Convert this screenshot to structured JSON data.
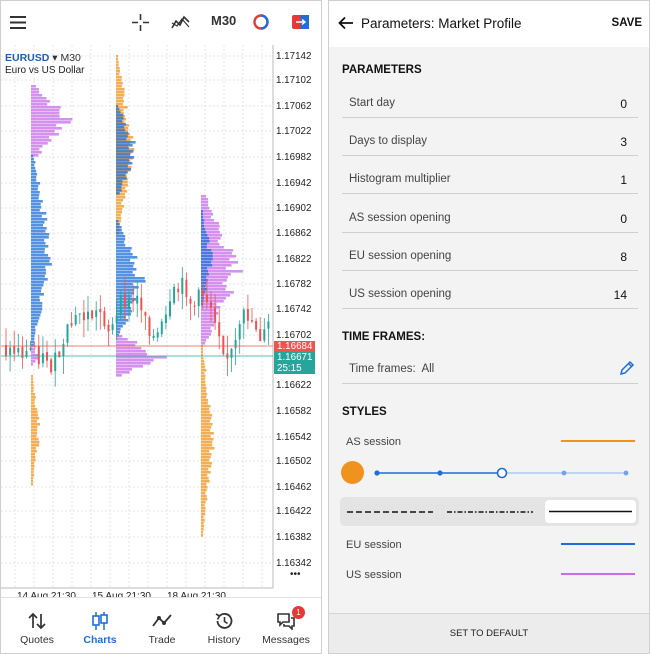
{
  "chart": {
    "symbol": "EURUSD",
    "timeframe": "M30",
    "description": "Euro vs US Dollar",
    "toolbar": {
      "timeframe_label": "M30"
    },
    "price_labels": [
      "1.17142",
      "1.17102",
      "1.17062",
      "1.17022",
      "1.16982",
      "1.16942",
      "1.16902",
      "1.16862",
      "1.16822",
      "1.16782",
      "1.16742",
      "1.16702",
      "1.16622",
      "1.16582",
      "1.16542",
      "1.16502",
      "1.16462",
      "1.16422",
      "1.16382",
      "1.16342"
    ],
    "bid_tag": "1.16684",
    "ask_tag": "1.16671",
    "timer_tag": "25:15",
    "time_labels": [
      "14 Aug 21:30",
      "15 Aug 21:30",
      "18 Aug 21:30"
    ],
    "more_label": "•••"
  },
  "colors": {
    "bull": "#26a69a",
    "bear": "#ef5350",
    "as_session": "#f0931e",
    "eu_session": "#1e6ed8",
    "us_session": "#c66ee8",
    "accent": "#1e6ed8"
  },
  "tabs": [
    {
      "label": "Quotes",
      "icon": "arrows-updown-icon"
    },
    {
      "label": "Charts",
      "icon": "candles-icon",
      "active": true
    },
    {
      "label": "Trade",
      "icon": "trend-icon"
    },
    {
      "label": "History",
      "icon": "history-icon"
    },
    {
      "label": "Messages",
      "icon": "chat-icon",
      "badge": "1"
    }
  ],
  "params_page": {
    "title": "Parameters: Market Profile",
    "save_label": "SAVE",
    "parameters_header": "PARAMETERS",
    "parameters": [
      {
        "name": "Start day",
        "value": "0"
      },
      {
        "name": "Days to display",
        "value": "3"
      },
      {
        "name": "Histogram multiplier",
        "value": "1"
      },
      {
        "name": "AS session opening",
        "value": "0"
      },
      {
        "name": "EU session opening",
        "value": "8"
      },
      {
        "name": "US session opening",
        "value": "14"
      }
    ],
    "timeframes_header": "TIME FRAMES:",
    "timeframes_label": "Time frames:",
    "timeframes_value": "All",
    "styles_header": "STYLES",
    "styles": [
      {
        "name": "AS session",
        "color": "#f0931e"
      },
      {
        "name": "EU session",
        "color": "#1e6ed8"
      },
      {
        "name": "US session",
        "color": "#c66ee8"
      }
    ],
    "width_slider_level": 3,
    "line_styles": [
      "dashed",
      "dash-dot",
      "solid"
    ],
    "selected_line_style": "solid",
    "reset_label": "SET TO DEFAULT"
  }
}
